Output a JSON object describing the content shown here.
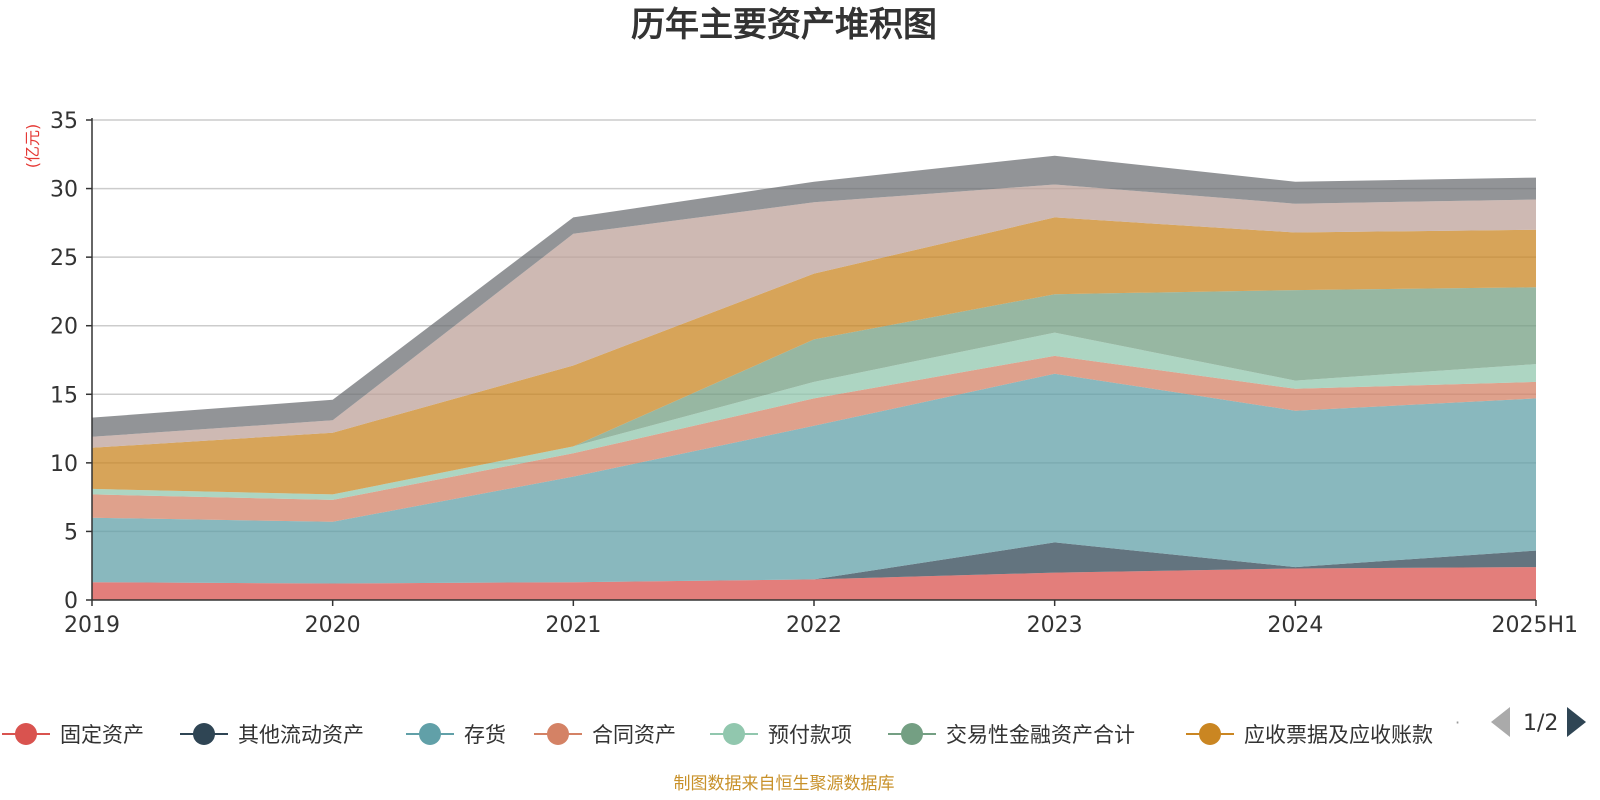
{
  "chart_data": {
    "type": "area",
    "stacked": true,
    "title": "历年主要资产堆积图",
    "ylabel": "(亿元)",
    "xlabel": "",
    "ylim": [
      0,
      35
    ],
    "yticks": [
      0,
      5,
      10,
      15,
      20,
      25,
      30,
      35
    ],
    "grid": true,
    "legend_placement": "bottom",
    "categories": [
      "2019",
      "2020",
      "2021",
      "2022",
      "2023",
      "2024",
      "2025H1"
    ],
    "series": [
      {
        "name": "固定资产",
        "color": "#d9534f",
        "values": [
          1.3,
          1.2,
          1.3,
          1.5,
          2.0,
          2.3,
          2.4
        ]
      },
      {
        "name": "其他流动资产",
        "color": "#2f4554",
        "values": [
          0.0,
          0.0,
          0.0,
          0.0,
          2.2,
          0.1,
          1.2
        ]
      },
      {
        "name": "存货",
        "color": "#61a0a8",
        "values": [
          4.7,
          4.5,
          7.7,
          11.2,
          12.3,
          11.4,
          11.1
        ]
      },
      {
        "name": "合同资产",
        "color": "#d48265",
        "values": [
          1.7,
          1.6,
          1.7,
          2.0,
          1.3,
          1.6,
          1.2
        ]
      },
      {
        "name": "预付款项",
        "color": "#91c7ae",
        "values": [
          0.4,
          0.4,
          0.5,
          1.2,
          1.7,
          0.6,
          1.3
        ]
      },
      {
        "name": "交易性金融资产合计",
        "color": "#749f83",
        "values": [
          0.0,
          0.0,
          0.0,
          3.1,
          2.8,
          6.6,
          5.6
        ]
      },
      {
        "name": "应收票据及应收账款",
        "color": "#ca8622",
        "values": [
          3.0,
          4.5,
          5.9,
          4.8,
          5.6,
          4.2,
          4.2
        ]
      },
      {
        "name": "",
        "color": "#bda29a",
        "values": [
          0.8,
          0.9,
          9.6,
          5.2,
          2.4,
          2.1,
          2.2
        ]
      },
      {
        "name": "",
        "color": "#6e7074",
        "values": [
          1.4,
          1.5,
          1.2,
          1.5,
          2.1,
          1.6,
          1.6
        ]
      }
    ]
  },
  "legend": {
    "page": "1/2",
    "more_marker": "·"
  },
  "footer": "制图数据来自恒生聚源数据库"
}
